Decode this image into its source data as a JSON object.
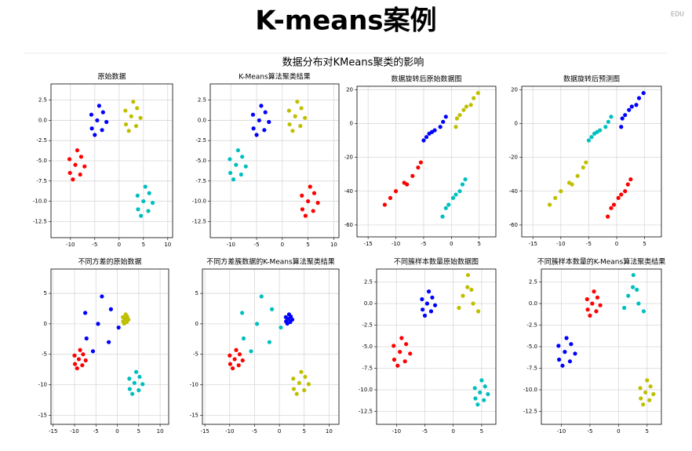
{
  "header": {
    "title": "K-means案例",
    "badge": "EDU"
  },
  "figure_title": "数据分布对KMeans聚类的影响",
  "chart_data": [
    {
      "type": "scatter",
      "title": "原始数据",
      "grid": true,
      "xlim": [
        -14,
        11
      ],
      "ylim": [
        -14.5,
        4.5
      ],
      "xticks": [
        -10,
        -5,
        0,
        5,
        10
      ],
      "yticks": [
        2.5,
        {
          "value": 0,
          "label": "0.0"
        },
        -2.5,
        {
          "value": -5,
          "label": "-5.0"
        },
        -7.5,
        {
          "value": -10,
          "label": "-10.0"
        },
        -12.5
      ],
      "series": [
        {
          "color": "#ff0000",
          "x": [
            -9,
            -7.8,
            -10.2,
            -8,
            -10.1,
            -8.6,
            -9.5,
            -7.1
          ],
          "y": [
            -5.5,
            -4.5,
            -4.8,
            -6.7,
            -6.5,
            -3.7,
            -7.3,
            -5.7
          ]
        },
        {
          "color": "#0000ff",
          "x": [
            -4.5,
            -3.3,
            -5.7,
            -3.5,
            -5.6,
            -4.1,
            -5,
            -2.6
          ],
          "y": [
            0,
            1,
            0.7,
            -1.2,
            -1,
            1.8,
            -1.8,
            -0.2
          ]
        },
        {
          "color": "#bfbf00",
          "x": [
            2.5,
            3.7,
            1.3,
            3.5,
            1.4,
            2.9,
            2,
            4.4
          ],
          "y": [
            0.5,
            1.5,
            1.2,
            -0.7,
            -0.5,
            2.3,
            -1.3,
            0.3
          ]
        },
        {
          "color": "#00bfbf",
          "x": [
            5,
            6.2,
            3.8,
            6,
            3.9,
            5.4,
            4.5,
            6.9
          ],
          "y": [
            -10,
            -9,
            -9.3,
            -11.2,
            -11,
            -8.2,
            -11.8,
            -10.2
          ]
        }
      ]
    },
    {
      "type": "scatter",
      "title": "K-Means算法聚类结果",
      "grid": true,
      "xlim": [
        -14,
        11
      ],
      "ylim": [
        -14.5,
        4.5
      ],
      "xticks": [
        -10,
        -5,
        0,
        5,
        10
      ],
      "yticks": [
        2.5,
        {
          "value": 0,
          "label": "0.0"
        },
        -2.5,
        {
          "value": -5,
          "label": "-5.0"
        },
        -7.5,
        {
          "value": -10,
          "label": "-10.0"
        },
        -12.5
      ],
      "series": [
        {
          "color": "#00bfbf",
          "x": [
            -9,
            -7.8,
            -10.2,
            -8,
            -10.1,
            -8.6,
            -9.5,
            -7.1
          ],
          "y": [
            -5.5,
            -4.5,
            -4.8,
            -6.7,
            -6.5,
            -3.7,
            -7.3,
            -5.7
          ]
        },
        {
          "color": "#0000ff",
          "x": [
            -4.5,
            -3.3,
            -5.7,
            -3.5,
            -5.6,
            -4.1,
            -5,
            -2.6
          ],
          "y": [
            0,
            1,
            0.7,
            -1.2,
            -1,
            1.8,
            -1.8,
            -0.2
          ]
        },
        {
          "color": "#bfbf00",
          "x": [
            2.5,
            3.7,
            1.3,
            3.5,
            1.4,
            2.9,
            2,
            4.4
          ],
          "y": [
            0.5,
            1.5,
            1.2,
            -0.7,
            -0.5,
            2.3,
            -1.3,
            0.3
          ]
        },
        {
          "color": "#ff0000",
          "x": [
            5,
            6.2,
            3.8,
            6,
            3.9,
            5.4,
            4.5,
            6.9
          ],
          "y": [
            -10,
            -9,
            -9.3,
            -11.2,
            -11,
            -8.2,
            -11.8,
            -10.2
          ]
        }
      ]
    },
    {
      "type": "scatter",
      "title": "数据旋转后原始数据图",
      "grid": true,
      "xlim": [
        -17,
        8
      ],
      "ylim": [
        -67,
        22
      ],
      "xticks": [
        -15,
        -10,
        -5,
        0,
        5
      ],
      "yticks": [
        20,
        0,
        -20,
        -40,
        -60
      ],
      "series": [
        {
          "color": "#ff0000",
          "x": [
            -8.5,
            -6,
            -11,
            -7,
            -10,
            -5.5,
            -12,
            -8
          ],
          "y": [
            -35,
            -26,
            -44,
            -31,
            -40,
            -23,
            -48,
            -36
          ]
        },
        {
          "color": "#0000ff",
          "x": [
            -3,
            -1.5,
            -4.5,
            -2,
            -4,
            -1,
            -5,
            -3.5
          ],
          "y": [
            -4,
            1,
            -8,
            -2,
            -6,
            4,
            -10,
            -5
          ]
        },
        {
          "color": "#bfbf00",
          "x": [
            2.7,
            4,
            1.5,
            3.5,
            1,
            4.8,
            0.8,
            2.2
          ],
          "y": [
            10,
            15,
            5,
            11,
            3,
            18,
            -2,
            8
          ]
        },
        {
          "color": "#00bfbf",
          "x": [
            0.8,
            2,
            -0.5,
            1.5,
            -1,
            2.5,
            -1.6,
            0.3
          ],
          "y": [
            -42,
            -36,
            -48,
            -40,
            -50,
            -33,
            -55,
            -44
          ]
        }
      ]
    },
    {
      "type": "scatter",
      "title": "数据旋转后预测图",
      "grid": true,
      "xlim": [
        -17,
        8
      ],
      "ylim": [
        -67,
        22
      ],
      "xticks": [
        -15,
        -10,
        -5,
        0,
        5
      ],
      "yticks": [
        20,
        0,
        -20,
        -40,
        -60
      ],
      "series": [
        {
          "color": "#bfbf00",
          "x": [
            -8.5,
            -6,
            -11,
            -7,
            -10,
            -5.5,
            -12,
            -8
          ],
          "y": [
            -35,
            -26,
            -44,
            -31,
            -40,
            -23,
            -48,
            -36
          ]
        },
        {
          "color": "#00bfbf",
          "x": [
            -3,
            -1.5,
            -4.5,
            -2,
            -4,
            -1,
            -5,
            -3.5
          ],
          "y": [
            -4,
            1,
            -8,
            -2,
            -6,
            4,
            -10,
            -5
          ]
        },
        {
          "color": "#0000ff",
          "x": [
            2.7,
            4,
            1.5,
            3.5,
            1,
            4.8,
            0.8,
            2.2
          ],
          "y": [
            10,
            15,
            5,
            11,
            3,
            18,
            -2,
            8
          ]
        },
        {
          "color": "#ff0000",
          "x": [
            0.8,
            2,
            -0.5,
            1.5,
            -1,
            2.5,
            -1.6,
            0.3
          ],
          "y": [
            -42,
            -36,
            -48,
            -40,
            -50,
            -33,
            -55,
            -44
          ]
        }
      ]
    },
    {
      "type": "scatter",
      "title": "不同方差的原始数据",
      "grid": true,
      "xlim": [
        -15.5,
        12
      ],
      "ylim": [
        -16.5,
        9
      ],
      "xticks": [
        -15,
        -10,
        -5,
        0,
        5,
        10
      ],
      "yticks": [
        5,
        0,
        -5,
        -10,
        -15
      ],
      "series": [
        {
          "color": "#0000ff",
          "x": [
            -4.5,
            -1.5,
            -7.5,
            -2,
            -7.2,
            -3.6,
            -5.7,
            0.3
          ],
          "y": [
            0,
            2.4,
            1.8,
            -3,
            -2.4,
            4.5,
            -4.5,
            -0.6
          ]
        },
        {
          "color": "#ff0000",
          "x": [
            -9,
            -8,
            -10,
            -8.2,
            -9.9,
            -8.7,
            -9.4,
            -7.4
          ],
          "y": [
            -5.8,
            -5,
            -5.2,
            -6.8,
            -6.6,
            -4.3,
            -7.3,
            -6
          ]
        },
        {
          "color": "#bfbf00",
          "x": [
            1.8,
            2.3,
            1.3,
            2.2,
            1.35,
            1.95,
            1.6,
            2.6
          ],
          "y": [
            0.8,
            1.2,
            1.1,
            0.3,
            0.4,
            1.55,
            0.05,
            0.7
          ]
        },
        {
          "color": "#00bfbf",
          "x": [
            4,
            5.2,
            2.8,
            5,
            2.9,
            4.4,
            3.5,
            5.9
          ],
          "y": [
            -9.7,
            -8.7,
            -9,
            -10.9,
            -10.7,
            -7.9,
            -11.5,
            -9.9
          ]
        }
      ]
    },
    {
      "type": "scatter",
      "title": "不同方差簇数据的K-Means算法聚类结果",
      "grid": true,
      "xlim": [
        -15.5,
        12
      ],
      "ylim": [
        -16.5,
        9
      ],
      "xticks": [
        -15,
        -10,
        -5,
        0,
        5,
        10
      ],
      "yticks": [
        5,
        0,
        -5,
        -10,
        -15
      ],
      "series": [
        {
          "color": "#00bfbf",
          "x": [
            -4.5,
            -1.5,
            -7.5,
            -2,
            -7.2,
            -3.6,
            -5.7,
            0.3
          ],
          "y": [
            0,
            2.4,
            1.8,
            -3,
            -2.4,
            4.5,
            -4.5,
            -0.6
          ]
        },
        {
          "color": "#ff0000",
          "x": [
            -9,
            -8,
            -10,
            -8.2,
            -9.9,
            -8.7,
            -9.4,
            -7.4
          ],
          "y": [
            -5.8,
            -5,
            -5.2,
            -6.8,
            -6.6,
            -4.3,
            -7.3,
            -6
          ]
        },
        {
          "color": "#0000ff",
          "x": [
            1.8,
            2.3,
            1.3,
            2.2,
            1.35,
            1.95,
            1.6,
            2.6
          ],
          "y": [
            0.8,
            1.2,
            1.1,
            0.3,
            0.4,
            1.55,
            0.05,
            0.7
          ]
        },
        {
          "color": "#bfbf00",
          "x": [
            4,
            5.2,
            2.8,
            5,
            2.9,
            4.4,
            3.5,
            5.9
          ],
          "y": [
            -9.7,
            -8.7,
            -9,
            -10.9,
            -10.7,
            -7.9,
            -11.5,
            -9.9
          ]
        }
      ]
    },
    {
      "type": "scatter",
      "title": "不同簇样本数量原始数据图",
      "grid": true,
      "xlim": [
        -13.5,
        7.5
      ],
      "ylim": [
        -14,
        4
      ],
      "xticks": [
        -10,
        -5,
        0,
        5
      ],
      "yticks": [
        2.5,
        {
          "value": 0,
          "label": "0.0"
        },
        -2.5,
        {
          "value": -5,
          "label": "-5.0"
        },
        -7.5,
        {
          "value": -10,
          "label": "-10.0"
        },
        -12.5
      ],
      "series": [
        {
          "color": "#ff0000",
          "x": [
            -9.4,
            -8.3,
            -10.5,
            -8.5,
            -10.4,
            -9.1,
            -9.8,
            -7.6
          ],
          "y": [
            -5.6,
            -4.7,
            -4.9,
            -6.7,
            -6.5,
            -4,
            -7.2,
            -5.8
          ]
        },
        {
          "color": "#0000ff",
          "x": [
            -4.6,
            -3.7,
            -5.5,
            -3.9,
            -5.4,
            -4.3,
            -5,
            -3.2
          ],
          "y": [
            0,
            0.7,
            0.5,
            -0.9,
            -0.7,
            1.4,
            -1.4,
            -0.2
          ]
        },
        {
          "color": "#bfbf00",
          "x": [
            2.6,
            2.5,
            1.7,
            1,
            3.5,
            4.4,
            3.2
          ],
          "y": [
            3.3,
            1.9,
            0.9,
            -0.5,
            0,
            -0.9,
            1.6
          ]
        },
        {
          "color": "#00bfbf",
          "x": [
            4.7,
            5.6,
            3.8,
            5.4,
            3.9,
            5,
            4.3,
            6.1
          ],
          "y": [
            -10.3,
            -9.6,
            -9.8,
            -11.2,
            -11,
            -8.9,
            -11.7,
            -10.5
          ]
        }
      ]
    },
    {
      "type": "scatter",
      "title": "不同簇样本数量的K-Means算法聚类结果",
      "grid": true,
      "xlim": [
        -13.5,
        7.5
      ],
      "ylim": [
        -14,
        4
      ],
      "xticks": [
        -10,
        -5,
        0,
        5
      ],
      "yticks": [
        2.5,
        {
          "value": 0,
          "label": "0.0"
        },
        -2.5,
        {
          "value": -5,
          "label": "-5.0"
        },
        -7.5,
        {
          "value": -10,
          "label": "-10.0"
        },
        -12.5
      ],
      "series": [
        {
          "color": "#0000ff",
          "x": [
            -9.4,
            -8.3,
            -10.5,
            -8.5,
            -10.4,
            -9.1,
            -9.8,
            -7.6
          ],
          "y": [
            -5.6,
            -4.7,
            -4.9,
            -6.7,
            -6.5,
            -4,
            -7.2,
            -5.8
          ]
        },
        {
          "color": "#ff0000",
          "x": [
            -4.6,
            -3.7,
            -5.5,
            -3.9,
            -5.4,
            -4.3,
            -5,
            -3.2
          ],
          "y": [
            0,
            0.7,
            0.5,
            -0.9,
            -0.7,
            1.4,
            -1.4,
            -0.2
          ]
        },
        {
          "color": "#00bfbf",
          "x": [
            2.6,
            2.5,
            1.7,
            1,
            3.5,
            4.4,
            3.2
          ],
          "y": [
            3.3,
            1.9,
            0.9,
            -0.5,
            0,
            -0.9,
            1.6
          ]
        },
        {
          "color": "#bfbf00",
          "x": [
            4.7,
            5.6,
            3.8,
            5.4,
            3.9,
            5,
            4.3,
            6.1
          ],
          "y": [
            -10.3,
            -9.6,
            -9.8,
            -11.2,
            -11,
            -8.9,
            -11.7,
            -10.5
          ]
        }
      ]
    }
  ]
}
